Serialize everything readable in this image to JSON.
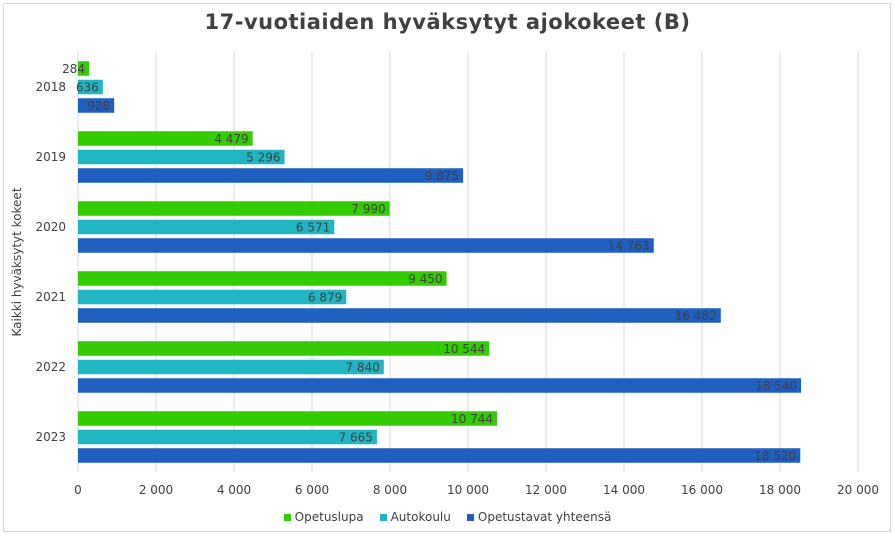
{
  "chart_data": {
    "type": "bar",
    "orientation": "horizontal",
    "title": "17-vuotiaiden hyväksytyt ajokokeet (B)",
    "ylabel": "Kaikki hyväksytyt kokeet",
    "xlabel": "",
    "categories": [
      "2018",
      "2019",
      "2020",
      "2021",
      "2022",
      "2023"
    ],
    "xlim": [
      0,
      20000
    ],
    "xticks": [
      "0",
      "2 000",
      "4 000",
      "6 000",
      "8 000",
      "10 000",
      "12 000",
      "14 000",
      "16 000",
      "18 000",
      "20 000"
    ],
    "grid": true,
    "legend_position": "bottom",
    "series": [
      {
        "name": "Opetuslupa",
        "color": "#33cc00",
        "values": [
          284,
          4479,
          7990,
          9450,
          10544,
          10744
        ],
        "labels": [
          "284",
          "4 479",
          "7 990",
          "9 450",
          "10 544",
          "10 744"
        ]
      },
      {
        "name": "Autokoulu",
        "color": "#1fb5c3",
        "values": [
          636,
          5296,
          6571,
          6879,
          7840,
          7665
        ],
        "labels": [
          "636",
          "5 296",
          "6 571",
          "6 879",
          "7 840",
          "7 665"
        ]
      },
      {
        "name": "Opetustavat yhteensä",
        "color": "#1f5fbf",
        "values": [
          928,
          9875,
          14763,
          16482,
          18540,
          18520
        ],
        "labels": [
          "928",
          "9 875",
          "14 763",
          "16 482",
          "18 540",
          "18 520"
        ]
      }
    ]
  }
}
